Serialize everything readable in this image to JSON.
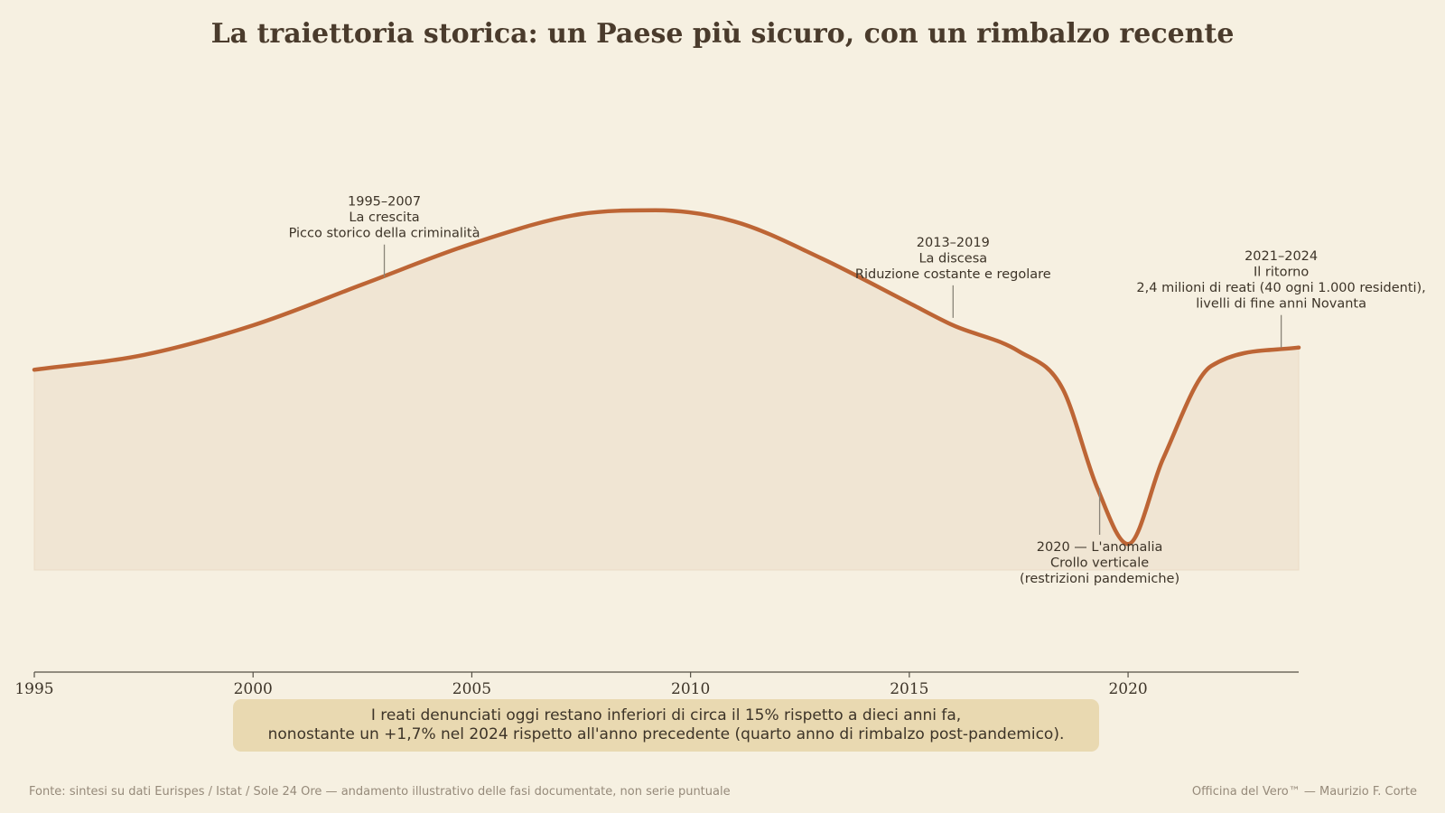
{
  "title": "La traiettoria storica: un Paese più sicuro, con un rimbalzo recente",
  "colors": {
    "line": "#bd6535",
    "fill": "#f0e5d3",
    "axis": "#555045",
    "annotation_line": "#8a8478",
    "box": "#e9d9b1"
  },
  "chart_data": {
    "type": "area",
    "title": "La traiettoria storica: un Paese più sicuro, con un rimbalzo recente",
    "xlabel": "",
    "ylabel": "",
    "xlim": [
      1995,
      2023.9
    ],
    "ylim": [
      0,
      1.05
    ],
    "x_ticks": [
      1995,
      2000,
      2005,
      2010,
      2015,
      2020
    ],
    "grid": false,
    "series": [
      {
        "x": [
          1995,
          1997.5,
          2000,
          2002.5,
          2005,
          2007.5,
          2009.2,
          2011,
          2013,
          2015,
          2016,
          2017.5,
          2018.5,
          2019.3,
          2020,
          2020.8,
          2021.9,
          2023.9
        ],
        "values": [
          0.54,
          0.58,
          0.66,
          0.77,
          0.88,
          0.96,
          0.97,
          0.94,
          0.84,
          0.72,
          0.66,
          0.59,
          0.49,
          0.22,
          0.07,
          0.3,
          0.55,
          0.6
        ]
      }
    ],
    "annotations": [
      {
        "x": 2003,
        "y": 0.79,
        "lines": [
          "1995–2007",
          "La crescita",
          "Picco storico della criminalità"
        ],
        "position": "above"
      },
      {
        "x": 2016,
        "y": 0.68,
        "lines": [
          "2013–2019",
          "La discesa",
          "Riduzione costante e regolare"
        ],
        "position": "above"
      },
      {
        "x": 2019.35,
        "y": 0.22,
        "lines": [
          "2020 — L'anomalia",
          "Crollo verticale",
          "(restrizioni pandemiche)"
        ],
        "position": "below"
      },
      {
        "x": 2023.5,
        "y": 0.6,
        "lines": [
          "2021–2024",
          "Il ritorno",
          "2,4 milioni di reati (40 ogni 1.000 residenti),",
          "livelli di fine anni Novanta"
        ],
        "position": "above"
      }
    ]
  },
  "summary": [
    "I reati denunciati oggi restano inferiori di circa il 15% rispetto a dieci anni fa,",
    "nonostante un +1,7% nel 2024 rispetto all'anno precedente (quarto anno di rimbalzo post-pandemico)."
  ],
  "footer": {
    "source": "Fonte: sintesi su dati Eurispes / Istat / Sole 24 Ore — andamento illustrativo delle fasi documentate, non serie puntuale",
    "credit": "Officina del Vero™ — Maurizio F. Corte"
  }
}
